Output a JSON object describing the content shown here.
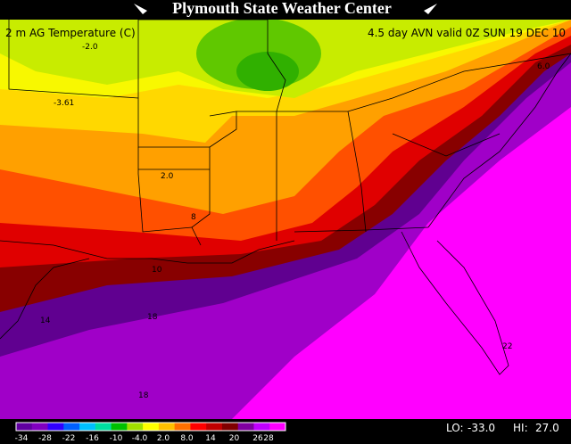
{
  "header": {
    "title": "Plymouth State Weather Center"
  },
  "map": {
    "field_label": "2 m AG Temperature (C)",
    "valid_label": "4.5 day AVN valid 0Z SUN 19 DEC 10",
    "contour_labels": [
      "-2.0",
      "-3.61",
      "2.0",
      "6.0",
      "8",
      "10",
      "14",
      "18",
      "22",
      "18"
    ]
  },
  "colorbar": {
    "labels": [
      "-34",
      "-28",
      "-22",
      "-16",
      "-10",
      "-4.0",
      "2.0",
      "8.0",
      "14",
      "20",
      "26",
      "28"
    ]
  },
  "extremes": {
    "lo_label": "LO:",
    "lo": "-33.0",
    "hi_label": "HI:",
    "hi": "27.0"
  }
}
